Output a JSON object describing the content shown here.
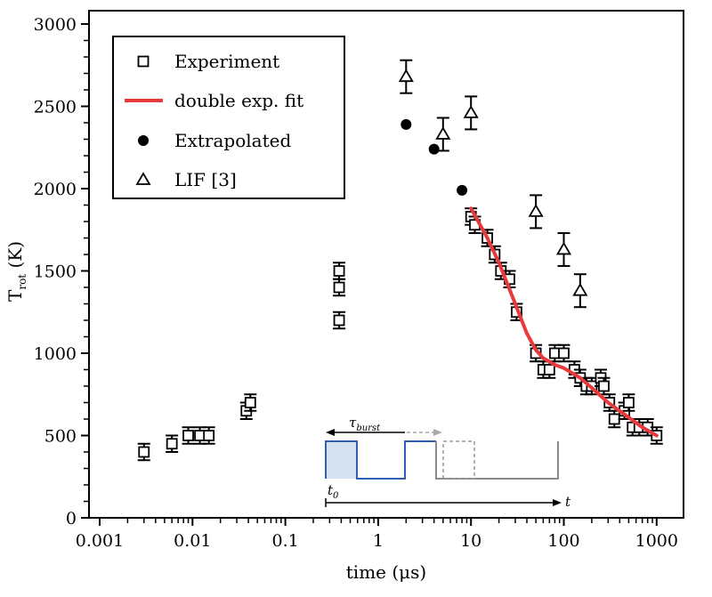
{
  "chart_data": {
    "type": "scatter",
    "title": "",
    "xlabel": "time (μs)",
    "ylabel_main": "T",
    "ylabel_sub": "rot",
    "ylabel_unit": "(K)",
    "xscale": "log",
    "xlim": [
      0.001,
      2000
    ],
    "ylim": [
      0,
      3000
    ],
    "xticks": [
      {
        "value": 0.001,
        "label": "0.001"
      },
      {
        "value": 0.01,
        "label": "0.01"
      },
      {
        "value": 0.1,
        "label": "0.1"
      },
      {
        "value": 1,
        "label": "1"
      },
      {
        "value": 10,
        "label": "10"
      },
      {
        "value": 100,
        "label": "100"
      },
      {
        "value": 1000,
        "label": "1000"
      }
    ],
    "yticks": [
      {
        "value": 0,
        "label": "0"
      },
      {
        "value": 500,
        "label": "500"
      },
      {
        "value": 1000,
        "label": "1000"
      },
      {
        "value": 1500,
        "label": "1500"
      },
      {
        "value": 2000,
        "label": "2000"
      },
      {
        "value": 2500,
        "label": "2500"
      },
      {
        "value": 3000,
        "label": "3000"
      }
    ],
    "legend_position": "top-left",
    "series": [
      {
        "name": "Experiment",
        "marker": "open-square",
        "error": 50,
        "points": [
          [
            0.003,
            400
          ],
          [
            0.006,
            450
          ],
          [
            0.009,
            500
          ],
          [
            0.012,
            500
          ],
          [
            0.015,
            500
          ],
          [
            0.038,
            650
          ],
          [
            0.042,
            700
          ],
          [
            0.38,
            1200
          ],
          [
            0.38,
            1400
          ],
          [
            0.38,
            1500
          ],
          [
            10,
            1830
          ],
          [
            11,
            1780
          ],
          [
            15,
            1700
          ],
          [
            18,
            1600
          ],
          [
            21,
            1500
          ],
          [
            26,
            1450
          ],
          [
            31,
            1250
          ],
          [
            50,
            1000
          ],
          [
            60,
            900
          ],
          [
            70,
            900
          ],
          [
            80,
            1000
          ],
          [
            100,
            1000
          ],
          [
            130,
            900
          ],
          [
            150,
            850
          ],
          [
            175,
            800
          ],
          [
            200,
            800
          ],
          [
            250,
            850
          ],
          [
            270,
            800
          ],
          [
            310,
            700
          ],
          [
            350,
            600
          ],
          [
            450,
            650
          ],
          [
            500,
            700
          ],
          [
            550,
            550
          ],
          [
            650,
            550
          ],
          [
            800,
            550
          ],
          [
            1000,
            500
          ]
        ]
      },
      {
        "name": "double exp. fit",
        "marker": "line",
        "color": "#e8393d",
        "points": [
          [
            10,
            1880
          ],
          [
            15,
            1700
          ],
          [
            20,
            1550
          ],
          [
            30,
            1300
          ],
          [
            40,
            1120
          ],
          [
            50,
            1020
          ],
          [
            60,
            970
          ],
          [
            80,
            930
          ],
          [
            100,
            910
          ],
          [
            150,
            850
          ],
          [
            200,
            790
          ],
          [
            300,
            700
          ],
          [
            500,
            610
          ],
          [
            700,
            550
          ],
          [
            1000,
            500
          ]
        ]
      },
      {
        "name": "Extrapolated",
        "marker": "filled-circle",
        "points": [
          [
            2,
            2390
          ],
          [
            4,
            2240
          ],
          [
            8,
            1990
          ]
        ]
      },
      {
        "name": "LIF [3]",
        "marker": "open-triangle",
        "error": 100,
        "points": [
          [
            2,
            2680
          ],
          [
            5,
            2330
          ],
          [
            10,
            2460
          ],
          [
            50,
            1860
          ],
          [
            100,
            1630
          ],
          [
            150,
            1380
          ]
        ]
      }
    ],
    "inset": {
      "tau_label": "τ",
      "tau_sub": "burst",
      "t0_label": "t",
      "t0_sub": "0",
      "t_label": "t",
      "colors": {
        "blue": "#2f5fae",
        "fill": "#d6e2f2",
        "gray": "#8a8a8a"
      }
    }
  }
}
